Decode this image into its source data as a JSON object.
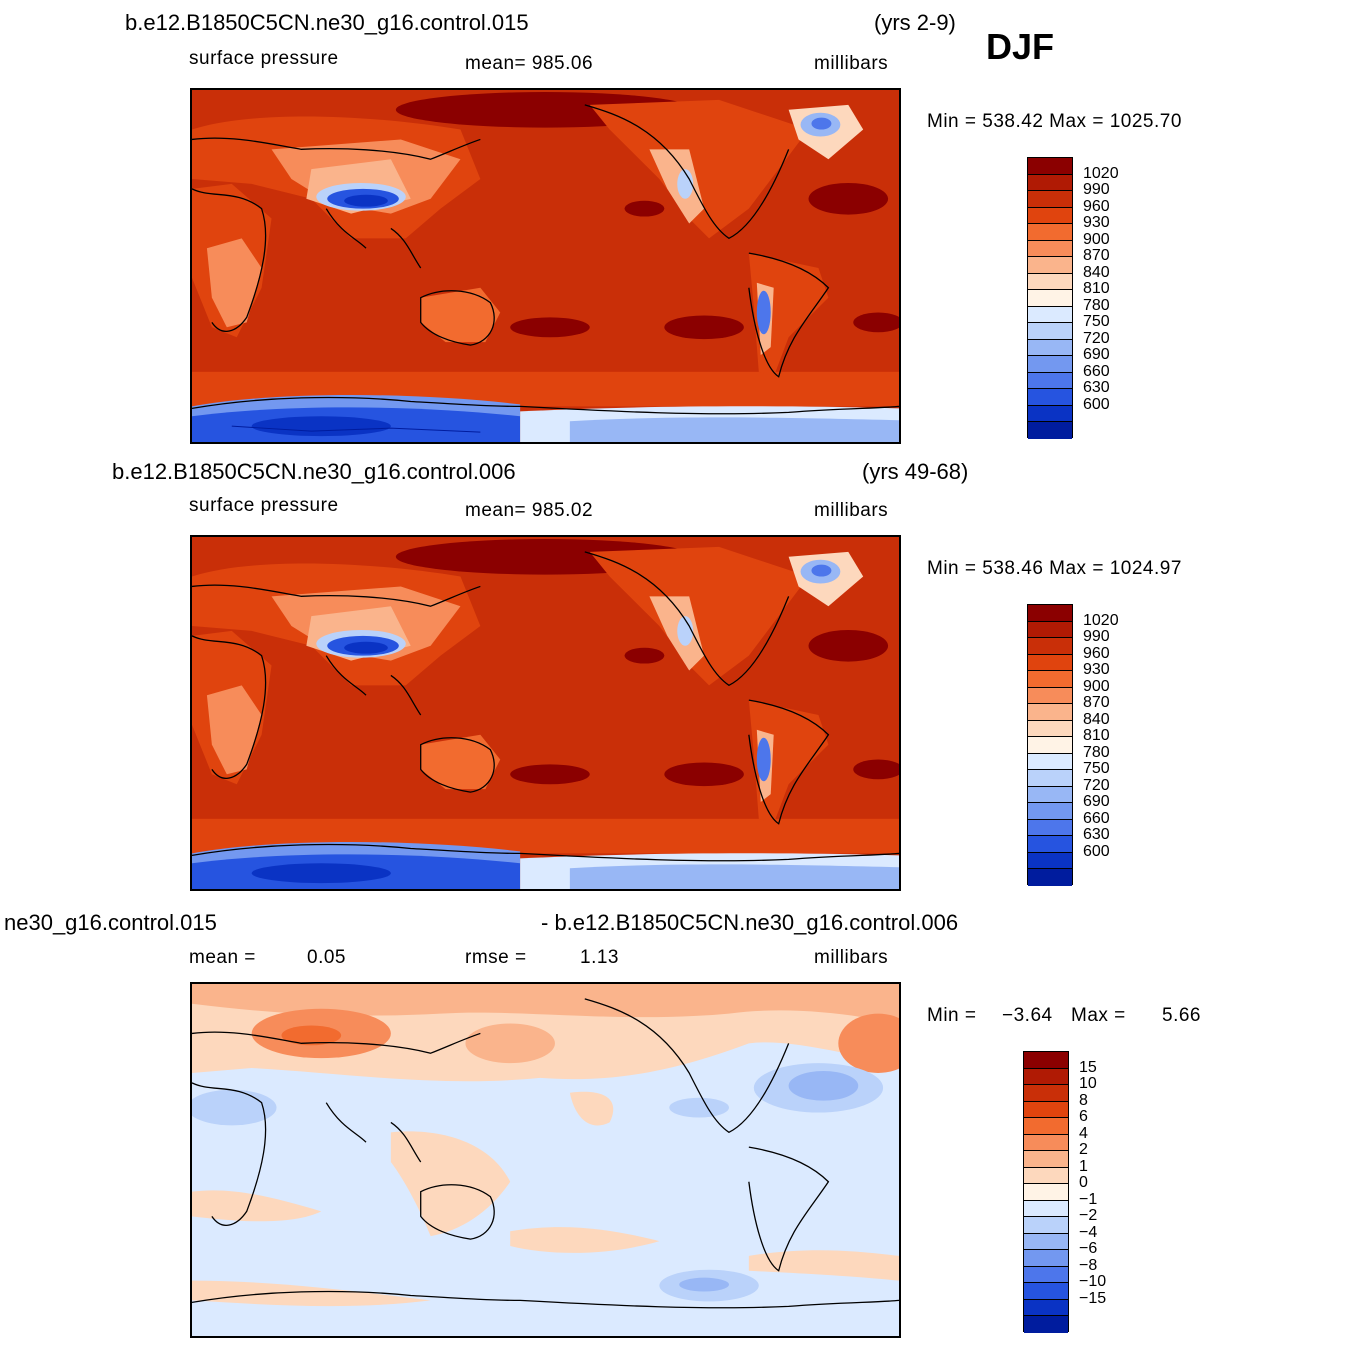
{
  "season": "DJF",
  "panels": [
    {
      "case_name": "b.e12.B1850C5CN.ne30_g16.control.015",
      "years": "(yrs 2-9)",
      "left_label": "surface pressure",
      "center_label": "mean= 985.06",
      "units": "millibars",
      "minmax": "Min = 538.42 Max = 1025.70",
      "colorbar": {
        "labels": [
          "1020",
          "990",
          "960",
          "930",
          "900",
          "870",
          "840",
          "810",
          "780",
          "750",
          "720",
          "690",
          "660",
          "630",
          "600"
        ],
        "colors": [
          "#8b0000",
          "#b01a04",
          "#c92f08",
          "#e0440e",
          "#f26b2f",
          "#f78c5a",
          "#fab48c",
          "#fdd8bd",
          "#fff3e6",
          "#dbeaff",
          "#bad2fa",
          "#98b7f5",
          "#7398f0",
          "#4d76eb",
          "#2654e0",
          "#0a33c4",
          "#001c9e"
        ]
      }
    },
    {
      "case_name": "b.e12.B1850C5CN.ne30_g16.control.006",
      "years": "(yrs 49-68)",
      "left_label": "surface pressure",
      "center_label": "mean= 985.02",
      "units": "millibars",
      "minmax": "Min = 538.46 Max = 1024.97",
      "colorbar": {
        "labels": [
          "1020",
          "990",
          "960",
          "930",
          "900",
          "870",
          "840",
          "810",
          "780",
          "750",
          "720",
          "690",
          "660",
          "630",
          "600"
        ],
        "colors": [
          "#8b0000",
          "#b01a04",
          "#c92f08",
          "#e0440e",
          "#f26b2f",
          "#f78c5a",
          "#fab48c",
          "#fdd8bd",
          "#fff3e6",
          "#dbeaff",
          "#bad2fa",
          "#98b7f5",
          "#7398f0",
          "#4d76eb",
          "#2654e0",
          "#0a33c4",
          "#001c9e"
        ]
      }
    },
    {
      "case_name_left": "ne30_g16.control.015",
      "case_name_right": "- b.e12.B1850C5CN.ne30_g16.control.006",
      "mean_label": "mean =",
      "mean_value": "0.05",
      "rmse_label": "rmse =",
      "rmse_value": "1.13",
      "units": "millibars",
      "min_label": "Min =",
      "min_value": "−3.64",
      "max_label": "Max =",
      "max_value": "5.66",
      "colorbar": {
        "labels": [
          "15",
          "10",
          "8",
          "6",
          "4",
          "2",
          "1",
          "0",
          "−1",
          "−2",
          "−4",
          "−6",
          "−8",
          "−10",
          "−15"
        ],
        "colors": [
          "#8b0000",
          "#b01a04",
          "#c92f08",
          "#e0440e",
          "#f26b2f",
          "#f78c5a",
          "#fab48c",
          "#fdd8bd",
          "#fff3e6",
          "#dbeaff",
          "#bad2fa",
          "#98b7f5",
          "#7398f0",
          "#4d76eb",
          "#2654e0",
          "#0a33c4",
          "#001c9e"
        ]
      }
    }
  ],
  "chart_data": [
    {
      "type": "heatmap",
      "title": "b.e12.B1850C5CN.ne30_g16.control.015",
      "variable": "surface pressure",
      "units": "millibars",
      "mean": 985.06,
      "min": 538.42,
      "max": 1025.7,
      "contour_levels": [
        600,
        630,
        660,
        690,
        720,
        750,
        780,
        810,
        840,
        870,
        900,
        930,
        960,
        990,
        1020
      ]
    },
    {
      "type": "heatmap",
      "title": "b.e12.B1850C5CN.ne30_g16.control.006",
      "variable": "surface pressure",
      "units": "millibars",
      "mean": 985.02,
      "min": 538.46,
      "max": 1024.97,
      "contour_levels": [
        600,
        630,
        660,
        690,
        720,
        750,
        780,
        810,
        840,
        870,
        900,
        930,
        960,
        990,
        1020
      ]
    },
    {
      "type": "heatmap",
      "title": "ne30_g16.control.015 - b.e12.B1850C5CN.ne30_g16.control.006",
      "units": "millibars",
      "mean": 0.05,
      "rmse": 1.13,
      "min": -3.64,
      "max": 5.66,
      "contour_levels": [
        -15,
        -10,
        -8,
        -6,
        -4,
        -2,
        -1,
        0,
        1,
        2,
        4,
        6,
        8,
        10,
        15
      ]
    }
  ]
}
